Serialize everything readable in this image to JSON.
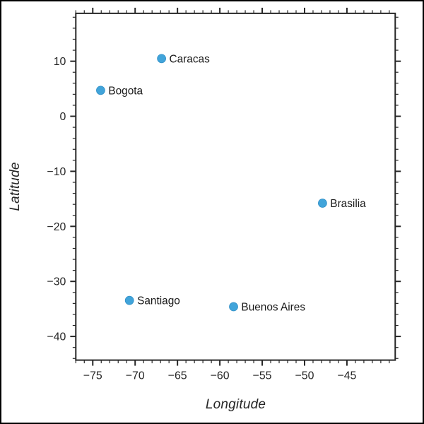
{
  "figure": {
    "background": "#ffffff",
    "frame_color": "#000000"
  },
  "chart_data": {
    "type": "scatter",
    "title": "",
    "xlabel": "Longitude",
    "ylabel": "Latitude",
    "xlim": [
      -77.0,
      -39.3
    ],
    "ylim": [
      -44.3,
      18.7
    ],
    "x_major_ticks": [
      -75,
      -70,
      -65,
      -60,
      -55,
      -50,
      -45
    ],
    "y_major_ticks": [
      10,
      0,
      -10,
      -20,
      -30,
      -40
    ],
    "x_minor_step": 1,
    "y_minor_step": 2,
    "grid": false,
    "legend": "none",
    "marker_color": "#41A4DA",
    "axis_color": "#262626",
    "label_color": "#1a1a1a",
    "points": [
      {
        "label": "Caracas",
        "lon": -66.88,
        "lat": 10.49
      },
      {
        "label": "Bogota",
        "lon": -74.07,
        "lat": 4.71
      },
      {
        "label": "Brasilia",
        "lon": -47.88,
        "lat": -15.79
      },
      {
        "label": "Santiago",
        "lon": -70.67,
        "lat": -33.45
      },
      {
        "label": "Buenos Aires",
        "lon": -58.38,
        "lat": -34.6
      }
    ]
  }
}
